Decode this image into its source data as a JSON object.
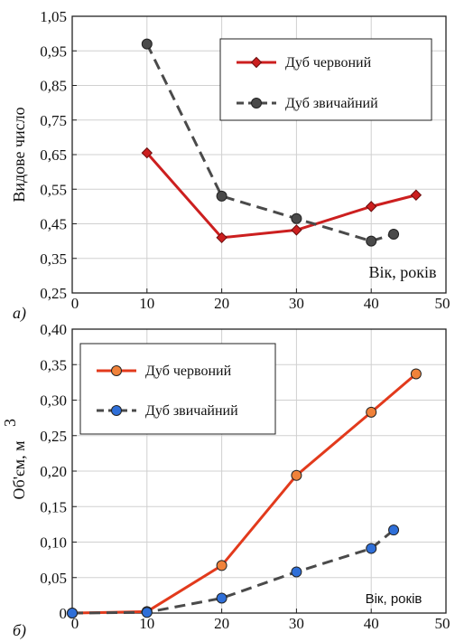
{
  "chart_data": [
    {
      "type": "line",
      "panel_label": "a)",
      "ylabel": "Видове число",
      "xlabel": "Вік, років",
      "xlim": [
        0,
        50
      ],
      "ylim": [
        0.25,
        1.05
      ],
      "xticks": [
        0,
        10,
        20,
        30,
        40,
        50
      ],
      "xtick_labels": [
        "0",
        "10",
        "20",
        "30",
        "40",
        "50"
      ],
      "yticks": [
        0.25,
        0.35,
        0.45,
        0.55,
        0.65,
        0.75,
        0.85,
        0.95,
        1.05
      ],
      "ytick_labels": [
        "0,25",
        "0,35",
        "0,45",
        "0,55",
        "0,65",
        "0,75",
        "0,85",
        "0,95",
        "1,05"
      ],
      "grid": true,
      "legend_position": "top-right",
      "series": [
        {
          "name": "Дуб червоний",
          "color": "#cc1f1f",
          "marker": "diamond",
          "style": "solid",
          "x": [
            10,
            20,
            30,
            40,
            46
          ],
          "y": [
            0.655,
            0.41,
            0.432,
            0.5,
            0.533
          ]
        },
        {
          "name": "Дуб звичайний",
          "color": "#4a4a4a",
          "marker": "circle",
          "style": "dashed",
          "x": [
            10,
            20,
            30,
            40,
            43
          ],
          "y": [
            0.97,
            0.53,
            0.465,
            0.4,
            0.42
          ]
        }
      ]
    },
    {
      "type": "line",
      "panel_label": "б)",
      "ylabel": "Об'єм, м",
      "ylabel_sup": "3",
      "xlabel": "Вік, років",
      "xlim": [
        0,
        50
      ],
      "ylim": [
        0,
        0.4
      ],
      "xticks": [
        0,
        10,
        20,
        30,
        40,
        50
      ],
      "xtick_labels": [
        "0",
        "10",
        "20",
        "30",
        "40",
        "50"
      ],
      "yticks": [
        0,
        0.05,
        0.1,
        0.15,
        0.2,
        0.25,
        0.3,
        0.35,
        0.4
      ],
      "ytick_labels": [
        "0",
        "0,05",
        "0,10",
        "0,15",
        "0,20",
        "0,25",
        "0,30",
        "0,35",
        "0,40"
      ],
      "grid": true,
      "legend_position": "top-left",
      "series": [
        {
          "name": "Дуб червоний",
          "color": "#e23a1c",
          "marker_fill": "#f0823a",
          "marker": "circle",
          "style": "solid",
          "x": [
            0,
            10,
            20,
            30,
            40,
            46
          ],
          "y": [
            0,
            0.002,
            0.067,
            0.194,
            0.283,
            0.337
          ]
        },
        {
          "name": "Дуб звичайний",
          "color": "#4a4a4a",
          "marker_fill": "#2f6fd8",
          "marker": "circle",
          "style": "dashed",
          "x": [
            0,
            10,
            20,
            30,
            40,
            43
          ],
          "y": [
            0,
            0.001,
            0.021,
            0.058,
            0.091,
            0.117
          ]
        }
      ]
    }
  ]
}
